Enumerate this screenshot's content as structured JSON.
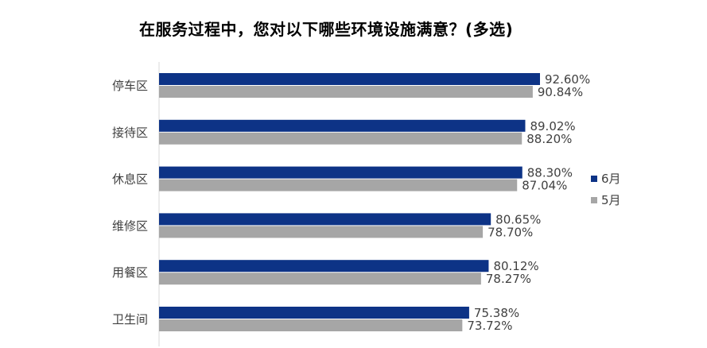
{
  "chart_data": {
    "type": "bar",
    "orientation": "horizontal",
    "title": "在服务过程中，您对以下哪些环境设施满意？(多选)",
    "categories": [
      "停车区",
      "接待区",
      "休息区",
      "维修区",
      "用餐区",
      "卫生间"
    ],
    "series": [
      {
        "name": "6月",
        "color": "#0d3386",
        "values": [
          92.6,
          89.02,
          88.3,
          80.65,
          80.12,
          75.38
        ],
        "labels": [
          "92.60%",
          "89.02%",
          "88.30%",
          "80.65%",
          "80.12%",
          "75.38%"
        ]
      },
      {
        "name": "5月",
        "color": "#a6a6a6",
        "values": [
          90.84,
          88.2,
          87.04,
          78.7,
          78.27,
          73.72
        ],
        "labels": [
          "90.84%",
          "88.20%",
          "87.04%",
          "78.70%",
          "78.27%",
          "73.72%"
        ]
      }
    ],
    "xlim": [
      0,
      100
    ],
    "grid": false,
    "legend_position": "right"
  }
}
